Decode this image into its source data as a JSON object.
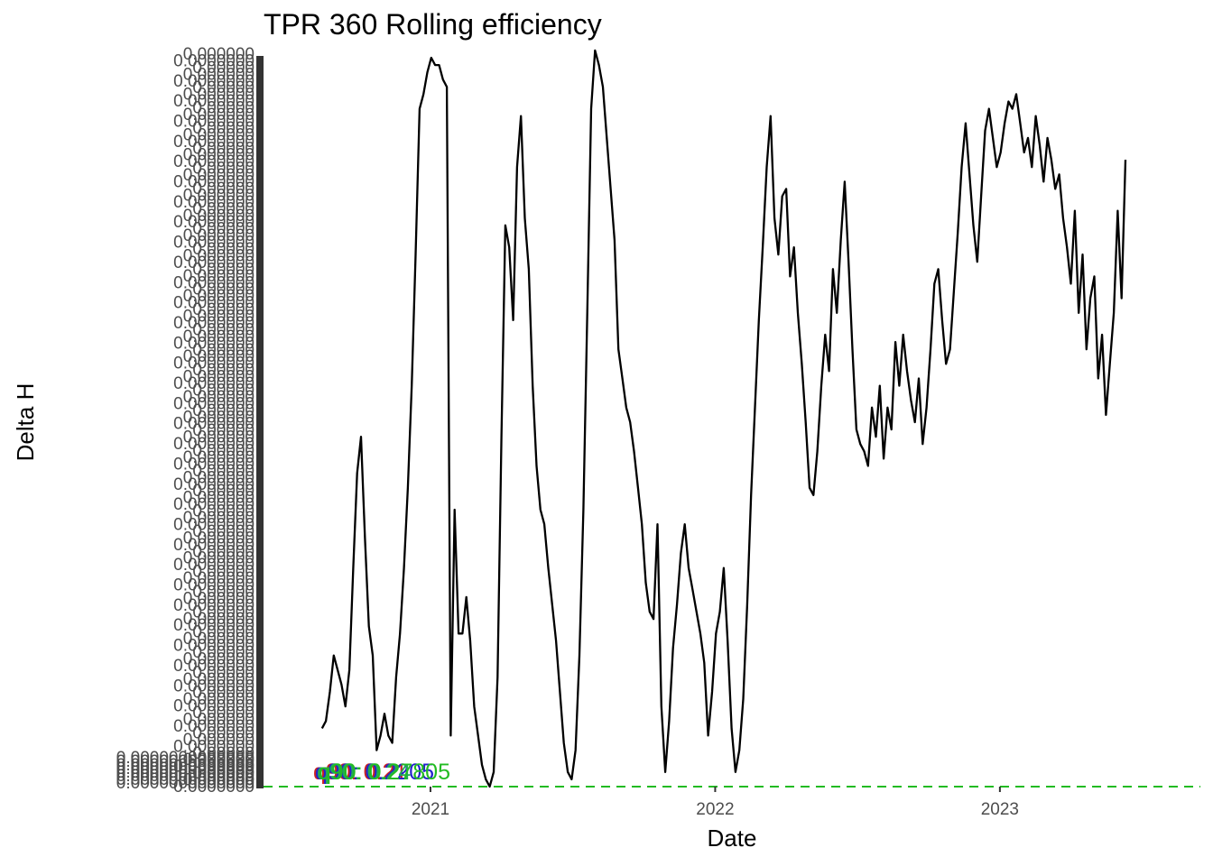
{
  "chart_data": {
    "type": "line",
    "title": "TPR 360 Rolling efficiency",
    "xlabel": "Date",
    "ylabel": "Delta H",
    "x_axis": {
      "type": "date",
      "range": [
        "2020-06-01",
        "2023-09-15"
      ],
      "ticks": [
        "2021-01-01",
        "2022-01-01",
        "2023-01-01"
      ],
      "tick_labels": [
        "2021",
        "2022",
        "2023"
      ]
    },
    "y_axis": {
      "range": [
        0,
        1
      ],
      "note": "y tick labels are a dense overplotted stack of long decimal numbers (illegible)"
    },
    "grid": false,
    "legend": "none",
    "colors": {
      "line": "#000000",
      "reference_line": "#22bb22",
      "axis_text": "#4d4d4d",
      "tick_bar": "#333333"
    },
    "reference_line": {
      "y": 0,
      "style": "dashed",
      "color": "#22bb22"
    },
    "quantile_labels": [
      {
        "text": "q90: 0.21",
        "color": "#cc2222"
      },
      {
        "text": "q90: 0.2205",
        "color": "#2222cc"
      },
      {
        "text": "q90: 0.24",
        "color": "#22aa55"
      },
      {
        "text": "q90: 0.27805",
        "color": "#22bb22"
      }
    ],
    "series": [
      {
        "name": "",
        "points": [
          [
            "2020-08-15",
            0.08
          ],
          [
            "2020-08-20",
            0.09
          ],
          [
            "2020-08-25",
            0.13
          ],
          [
            "2020-08-30",
            0.18
          ],
          [
            "2020-09-04",
            0.16
          ],
          [
            "2020-09-09",
            0.14
          ],
          [
            "2020-09-14",
            0.11
          ],
          [
            "2020-09-19",
            0.16
          ],
          [
            "2020-09-24",
            0.3
          ],
          [
            "2020-09-29",
            0.43
          ],
          [
            "2020-10-04",
            0.48
          ],
          [
            "2020-10-09",
            0.34
          ],
          [
            "2020-10-14",
            0.22
          ],
          [
            "2020-10-19",
            0.18
          ],
          [
            "2020-10-24",
            0.05
          ],
          [
            "2020-10-29",
            0.07
          ],
          [
            "2020-11-03",
            0.1
          ],
          [
            "2020-11-08",
            0.07
          ],
          [
            "2020-11-13",
            0.06
          ],
          [
            "2020-11-18",
            0.15
          ],
          [
            "2020-11-23",
            0.21
          ],
          [
            "2020-11-28",
            0.3
          ],
          [
            "2020-12-03",
            0.41
          ],
          [
            "2020-12-08",
            0.55
          ],
          [
            "2020-12-13",
            0.73
          ],
          [
            "2020-12-18",
            0.93
          ],
          [
            "2020-12-23",
            0.95
          ],
          [
            "2020-12-28",
            0.98
          ],
          [
            "2021-01-02",
            1.0
          ],
          [
            "2021-01-07",
            0.99
          ],
          [
            "2021-01-12",
            0.99
          ],
          [
            "2021-01-17",
            0.97
          ],
          [
            "2021-01-22",
            0.96
          ],
          [
            "2021-01-27",
            0.07
          ],
          [
            "2021-02-01",
            0.38
          ],
          [
            "2021-02-06",
            0.21
          ],
          [
            "2021-02-11",
            0.21
          ],
          [
            "2021-02-16",
            0.26
          ],
          [
            "2021-02-21",
            0.2
          ],
          [
            "2021-02-26",
            0.11
          ],
          [
            "2021-03-03",
            0.07
          ],
          [
            "2021-03-08",
            0.03
          ],
          [
            "2021-03-13",
            0.01
          ],
          [
            "2021-03-18",
            0.0
          ],
          [
            "2021-03-23",
            0.02
          ],
          [
            "2021-03-28",
            0.15
          ],
          [
            "2021-04-02",
            0.48
          ],
          [
            "2021-04-07",
            0.77
          ],
          [
            "2021-04-12",
            0.74
          ],
          [
            "2021-04-17",
            0.64
          ],
          [
            "2021-04-22",
            0.85
          ],
          [
            "2021-04-27",
            0.92
          ],
          [
            "2021-05-02",
            0.78
          ],
          [
            "2021-05-07",
            0.71
          ],
          [
            "2021-05-12",
            0.55
          ],
          [
            "2021-05-17",
            0.44
          ],
          [
            "2021-05-22",
            0.38
          ],
          [
            "2021-05-27",
            0.36
          ],
          [
            "2021-06-01",
            0.3
          ],
          [
            "2021-06-06",
            0.25
          ],
          [
            "2021-06-11",
            0.2
          ],
          [
            "2021-06-16",
            0.13
          ],
          [
            "2021-06-21",
            0.06
          ],
          [
            "2021-06-26",
            0.02
          ],
          [
            "2021-07-01",
            0.01
          ],
          [
            "2021-07-06",
            0.05
          ],
          [
            "2021-07-11",
            0.18
          ],
          [
            "2021-07-16",
            0.38
          ],
          [
            "2021-07-21",
            0.65
          ],
          [
            "2021-07-26",
            0.93
          ],
          [
            "2021-07-31",
            1.01
          ],
          [
            "2021-08-05",
            0.99
          ],
          [
            "2021-08-10",
            0.96
          ],
          [
            "2021-08-15",
            0.89
          ],
          [
            "2021-08-20",
            0.82
          ],
          [
            "2021-08-25",
            0.75
          ],
          [
            "2021-08-30",
            0.6
          ],
          [
            "2021-09-04",
            0.56
          ],
          [
            "2021-09-09",
            0.52
          ],
          [
            "2021-09-14",
            0.5
          ],
          [
            "2021-09-19",
            0.46
          ],
          [
            "2021-09-24",
            0.41
          ],
          [
            "2021-09-29",
            0.36
          ],
          [
            "2021-10-04",
            0.28
          ],
          [
            "2021-10-09",
            0.24
          ],
          [
            "2021-10-14",
            0.23
          ],
          [
            "2021-10-19",
            0.36
          ],
          [
            "2021-10-24",
            0.11
          ],
          [
            "2021-10-29",
            0.02
          ],
          [
            "2021-11-03",
            0.09
          ],
          [
            "2021-11-08",
            0.19
          ],
          [
            "2021-11-13",
            0.25
          ],
          [
            "2021-11-18",
            0.32
          ],
          [
            "2021-11-23",
            0.36
          ],
          [
            "2021-11-28",
            0.3
          ],
          [
            "2021-12-03",
            0.27
          ],
          [
            "2021-12-08",
            0.24
          ],
          [
            "2021-12-13",
            0.21
          ],
          [
            "2021-12-18",
            0.17
          ],
          [
            "2021-12-23",
            0.07
          ],
          [
            "2021-12-28",
            0.13
          ],
          [
            "2022-01-02",
            0.21
          ],
          [
            "2022-01-07",
            0.24
          ],
          [
            "2022-01-12",
            0.3
          ],
          [
            "2022-01-17",
            0.2
          ],
          [
            "2022-01-22",
            0.08
          ],
          [
            "2022-01-27",
            0.02
          ],
          [
            "2022-02-01",
            0.05
          ],
          [
            "2022-02-06",
            0.12
          ],
          [
            "2022-02-11",
            0.25
          ],
          [
            "2022-02-16",
            0.4
          ],
          [
            "2022-02-21",
            0.52
          ],
          [
            "2022-02-26",
            0.64
          ],
          [
            "2022-03-03",
            0.74
          ],
          [
            "2022-03-08",
            0.85
          ],
          [
            "2022-03-13",
            0.92
          ],
          [
            "2022-03-18",
            0.78
          ],
          [
            "2022-03-23",
            0.73
          ],
          [
            "2022-03-28",
            0.81
          ],
          [
            "2022-04-02",
            0.82
          ],
          [
            "2022-04-07",
            0.7
          ],
          [
            "2022-04-12",
            0.74
          ],
          [
            "2022-04-17",
            0.65
          ],
          [
            "2022-04-22",
            0.58
          ],
          [
            "2022-04-27",
            0.5
          ],
          [
            "2022-05-02",
            0.41
          ],
          [
            "2022-05-07",
            0.4
          ],
          [
            "2022-05-12",
            0.46
          ],
          [
            "2022-05-17",
            0.55
          ],
          [
            "2022-05-22",
            0.62
          ],
          [
            "2022-05-27",
            0.57
          ],
          [
            "2022-06-01",
            0.71
          ],
          [
            "2022-06-06",
            0.65
          ],
          [
            "2022-06-11",
            0.75
          ],
          [
            "2022-06-16",
            0.83
          ],
          [
            "2022-06-21",
            0.72
          ],
          [
            "2022-06-26",
            0.6
          ],
          [
            "2022-07-01",
            0.49
          ],
          [
            "2022-07-06",
            0.47
          ],
          [
            "2022-07-11",
            0.46
          ],
          [
            "2022-07-16",
            0.44
          ],
          [
            "2022-07-21",
            0.52
          ],
          [
            "2022-07-26",
            0.48
          ],
          [
            "2022-07-31",
            0.55
          ],
          [
            "2022-08-05",
            0.45
          ],
          [
            "2022-08-10",
            0.52
          ],
          [
            "2022-08-15",
            0.49
          ],
          [
            "2022-08-20",
            0.61
          ],
          [
            "2022-08-25",
            0.55
          ],
          [
            "2022-08-30",
            0.62
          ],
          [
            "2022-09-04",
            0.57
          ],
          [
            "2022-09-09",
            0.53
          ],
          [
            "2022-09-14",
            0.5
          ],
          [
            "2022-09-19",
            0.56
          ],
          [
            "2022-09-24",
            0.47
          ],
          [
            "2022-09-29",
            0.52
          ],
          [
            "2022-10-04",
            0.6
          ],
          [
            "2022-10-09",
            0.69
          ],
          [
            "2022-10-14",
            0.71
          ],
          [
            "2022-10-19",
            0.64
          ],
          [
            "2022-10-24",
            0.58
          ],
          [
            "2022-10-29",
            0.6
          ],
          [
            "2022-11-03",
            0.68
          ],
          [
            "2022-11-08",
            0.76
          ],
          [
            "2022-11-13",
            0.85
          ],
          [
            "2022-11-18",
            0.91
          ],
          [
            "2022-11-23",
            0.84
          ],
          [
            "2022-11-28",
            0.77
          ],
          [
            "2022-12-03",
            0.72
          ],
          [
            "2022-12-08",
            0.81
          ],
          [
            "2022-12-13",
            0.9
          ],
          [
            "2022-12-18",
            0.93
          ],
          [
            "2022-12-23",
            0.89
          ],
          [
            "2022-12-28",
            0.85
          ],
          [
            "2023-01-02",
            0.87
          ],
          [
            "2023-01-07",
            0.91
          ],
          [
            "2023-01-12",
            0.94
          ],
          [
            "2023-01-17",
            0.93
          ],
          [
            "2023-01-22",
            0.95
          ],
          [
            "2023-01-27",
            0.91
          ],
          [
            "2023-02-01",
            0.87
          ],
          [
            "2023-02-06",
            0.89
          ],
          [
            "2023-02-11",
            0.85
          ],
          [
            "2023-02-16",
            0.92
          ],
          [
            "2023-02-21",
            0.88
          ],
          [
            "2023-02-26",
            0.83
          ],
          [
            "2023-03-03",
            0.89
          ],
          [
            "2023-03-08",
            0.86
          ],
          [
            "2023-03-13",
            0.82
          ],
          [
            "2023-03-18",
            0.84
          ],
          [
            "2023-03-23",
            0.78
          ],
          [
            "2023-03-28",
            0.74
          ],
          [
            "2023-04-02",
            0.69
          ],
          [
            "2023-04-07",
            0.79
          ],
          [
            "2023-04-12",
            0.65
          ],
          [
            "2023-04-17",
            0.73
          ],
          [
            "2023-04-22",
            0.6
          ],
          [
            "2023-04-27",
            0.67
          ],
          [
            "2023-05-02",
            0.7
          ],
          [
            "2023-05-07",
            0.56
          ],
          [
            "2023-05-12",
            0.62
          ],
          [
            "2023-05-17",
            0.51
          ],
          [
            "2023-05-22",
            0.58
          ],
          [
            "2023-05-27",
            0.65
          ],
          [
            "2023-06-01",
            0.79
          ],
          [
            "2023-06-06",
            0.67
          ],
          [
            "2023-06-11",
            0.86
          ]
        ]
      }
    ]
  }
}
